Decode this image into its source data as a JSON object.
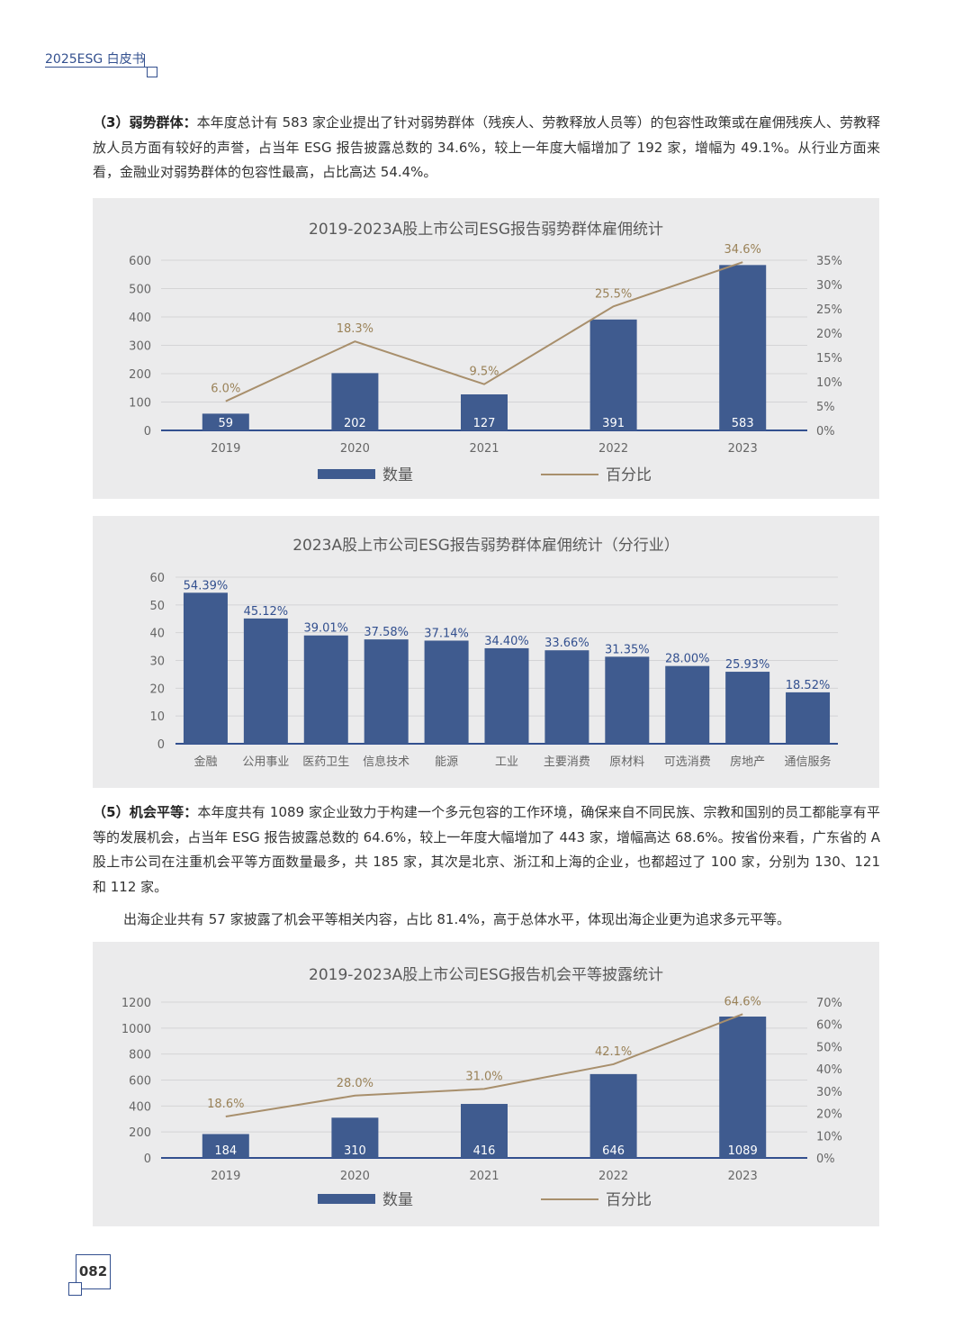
{
  "header": {
    "label": "2025ESG 白皮书"
  },
  "para1": {
    "lead": "（3）弱势群体：",
    "text": "本年度总计有 583 家企业提出了针对弱势群体（残疾人、劳教释放人员等）的包容性政策或在雇佣残疾人、劳教释放人员方面有较好的声誉，占当年 ESG 报告披露总数的 34.6%，较上一年度大幅增加了 192 家，增幅为 49.1%。从行业方面来看，金融业对弱势群体的包容性最高，占比高达 54.4%。"
  },
  "para2": {
    "lead": "（5）机会平等：",
    "text": "本年度共有 1089 家企业致力于构建一个多元包容的工作环境，确保来自不同民族、宗教和国别的员工都能享有平等的发展机会，占当年 ESG 报告披露总数的 64.6%，较上一年度大幅增加了 443 家，增幅高达 68.6%。按省份来看，广东省的 A 股上市公司在注重机会平等方面数量最多，共 185 家，其次是北京、浙江和上海的企业，也都超过了 100 家，分别为 130、121 和 112 家。"
  },
  "para3": {
    "text": "出海企业共有 57 家披露了机会平等相关内容，占比 81.4%，高于总体水平，体现出海企业更为追求多元平等。"
  },
  "page_number": "082",
  "colors": {
    "bar": "#3f5b8f",
    "line": "#a88f6c",
    "accent": "#33508f",
    "panel": "#ebebec"
  },
  "chart_data": [
    {
      "type": "bar",
      "title": "2019-2023A股上市公司ESG报告弱势群体雇佣统计",
      "categories": [
        "2019",
        "2020",
        "2021",
        "2022",
        "2023"
      ],
      "series": [
        {
          "name": "数量",
          "type": "bar",
          "values": [
            59,
            202,
            127,
            391,
            583
          ],
          "labels": [
            "59",
            "202",
            "127",
            "391",
            "583"
          ]
        },
        {
          "name": "百分比",
          "type": "line",
          "values": [
            6.0,
            18.3,
            9.5,
            25.5,
            34.6
          ],
          "labels": [
            "6.0%",
            "18.3%",
            "9.5%",
            "25.5%",
            "34.6%"
          ]
        }
      ],
      "ylim": [
        0,
        600
      ],
      "yticks": [
        "600",
        "500",
        "400",
        "300",
        "200",
        "100",
        "0"
      ],
      "y2lim": [
        0,
        35
      ],
      "y2ticks": [
        "35%",
        "30%",
        "25%",
        "20%",
        "15%",
        "10%",
        "5%",
        "0%"
      ],
      "legend": "bottom",
      "grid": true
    },
    {
      "type": "bar",
      "title": "2023A股上市公司ESG报告弱势群体雇佣统计（分行业）",
      "categories": [
        "金融",
        "公用事业",
        "医药卫生",
        "信息技术",
        "能源",
        "工业",
        "主要消费",
        "原材料",
        "可选消费",
        "房地产",
        "通信服务"
      ],
      "values": [
        54.39,
        45.12,
        39.01,
        37.58,
        37.14,
        34.4,
        33.66,
        31.35,
        28.0,
        25.93,
        18.52
      ],
      "labels": [
        "54.39%",
        "45.12%",
        "39.01%",
        "37.58%",
        "37.14%",
        "34.40%",
        "33.66%",
        "31.35%",
        "28.00%",
        "25.93%",
        "18.52%"
      ],
      "ylim": [
        0,
        60
      ],
      "yticks": [
        "60",
        "50",
        "40",
        "30",
        "20",
        "10",
        "0"
      ],
      "grid": true
    },
    {
      "type": "bar",
      "title": "2019-2023A股上市公司ESG报告机会平等披露统计",
      "categories": [
        "2019",
        "2020",
        "2021",
        "2022",
        "2023"
      ],
      "series": [
        {
          "name": "数量",
          "type": "bar",
          "values": [
            184,
            310,
            416,
            646,
            1089
          ],
          "labels": [
            "184",
            "310",
            "416",
            "646",
            "1089"
          ]
        },
        {
          "name": "百分比",
          "type": "line",
          "values": [
            18.6,
            28.0,
            31.0,
            42.1,
            64.6
          ],
          "labels": [
            "18.6%",
            "28.0%",
            "31.0%",
            "42.1%",
            "64.6%"
          ]
        }
      ],
      "ylim": [
        0,
        1200
      ],
      "yticks": [
        "1200",
        "1000",
        "800",
        "600",
        "400",
        "200",
        "0"
      ],
      "y2lim": [
        0,
        70
      ],
      "y2ticks": [
        "70%",
        "60%",
        "50%",
        "40%",
        "30%",
        "20%",
        "10%",
        "0%"
      ],
      "legend": "bottom",
      "grid": true
    }
  ]
}
